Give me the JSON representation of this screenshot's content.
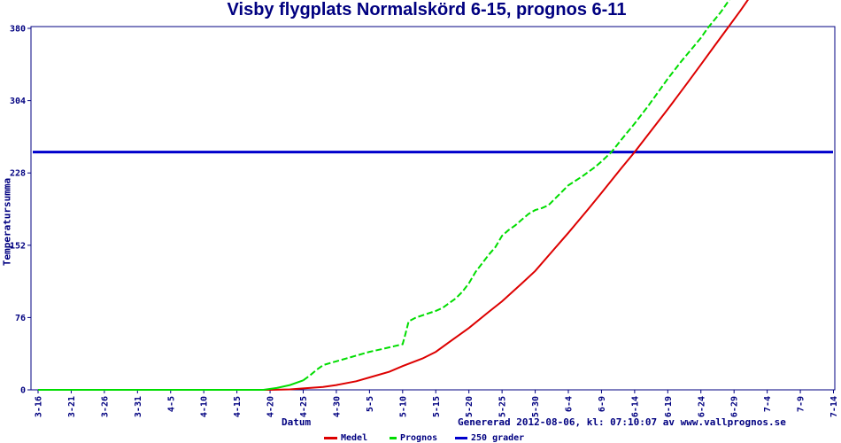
{
  "footer": "Genererad 2012-08-06, kl: 07:10:07 av www.vallprognos.se",
  "colors": {
    "axis": "#000080",
    "text": "#000080",
    "title": "#000080",
    "medel": "#dd0000",
    "prognos": "#00dd00",
    "reference": "#0000cc",
    "background": "#ffffff"
  },
  "legend": [
    {
      "label": "Medel",
      "color": "#dd0000"
    },
    {
      "label": "Prognos",
      "color": "#00dd00"
    },
    {
      "label": "250 grader",
      "color": "#0000cc"
    }
  ],
  "chart_data": {
    "type": "line",
    "title": "Visby flygplats Normalskörd 6-15, prognos 6-11",
    "xlabel": "Datum",
    "ylabel": "Temperatursumma",
    "ylim": [
      0,
      380
    ],
    "yticks": [
      0,
      76,
      152,
      228,
      304,
      380
    ],
    "x_unit": "days since 3-16",
    "xtick_day_step": 5,
    "xtick_labels": [
      "3-16",
      "3-21",
      "3-26",
      "3-31",
      "4-5",
      "4-10",
      "4-15",
      "4-20",
      "4-25",
      "4-30",
      "5-5",
      "5-10",
      "5-15",
      "5-20",
      "5-25",
      "5-30",
      "6-4",
      "6-9",
      "6-14",
      "6-19",
      "6-24",
      "6-29",
      "7-4",
      "7-9",
      "7-14"
    ],
    "grid": false,
    "legend_position": "bottom",
    "reference_line": {
      "label": "250 grader",
      "value": 250
    },
    "series": [
      {
        "name": "Medel",
        "color": "#dd0000",
        "style": "solid",
        "points": [
          [
            0,
            0
          ],
          [
            15,
            0
          ],
          [
            30,
            0
          ],
          [
            35,
            0
          ],
          [
            38,
            0.5
          ],
          [
            40,
            1.5
          ],
          [
            43,
            3
          ],
          [
            45,
            5
          ],
          [
            48,
            9
          ],
          [
            50,
            13
          ],
          [
            53,
            19
          ],
          [
            55,
            25
          ],
          [
            58,
            33
          ],
          [
            60,
            40
          ],
          [
            63,
            55
          ],
          [
            65,
            65
          ],
          [
            68,
            82
          ],
          [
            70,
            93
          ],
          [
            73,
            112
          ],
          [
            75,
            125
          ],
          [
            78,
            149
          ],
          [
            80,
            165
          ],
          [
            83,
            190
          ],
          [
            85,
            207
          ],
          [
            88,
            233
          ],
          [
            90,
            250
          ],
          [
            93,
            277
          ],
          [
            95,
            295
          ],
          [
            98,
            323
          ],
          [
            100,
            342
          ],
          [
            102,
            361
          ],
          [
            104,
            380
          ],
          [
            106,
            399
          ],
          [
            107.3,
            412
          ]
        ]
      },
      {
        "name": "Prognos",
        "color": "#00dd00",
        "style": "dashed",
        "points": [
          [
            0,
            0
          ],
          [
            15,
            0
          ],
          [
            30,
            0
          ],
          [
            34,
            0
          ],
          [
            36,
            2
          ],
          [
            38,
            5
          ],
          [
            40,
            10
          ],
          [
            41,
            15
          ],
          [
            42,
            21
          ],
          [
            43,
            26
          ],
          [
            44,
            28
          ],
          [
            45,
            30
          ],
          [
            47,
            34
          ],
          [
            50,
            40
          ],
          [
            52,
            43
          ],
          [
            55,
            48
          ],
          [
            55.4,
            58
          ],
          [
            55.9,
            72
          ],
          [
            57,
            76
          ],
          [
            60,
            83
          ],
          [
            61,
            86
          ],
          [
            62,
            91
          ],
          [
            63,
            96
          ],
          [
            64,
            103
          ],
          [
            65,
            112
          ],
          [
            66,
            124
          ],
          [
            67,
            133
          ],
          [
            68,
            142
          ],
          [
            69,
            150
          ],
          [
            70,
            162
          ],
          [
            71,
            168
          ],
          [
            72,
            173
          ],
          [
            73,
            179
          ],
          [
            74,
            185
          ],
          [
            75,
            189
          ],
          [
            76,
            191
          ],
          [
            77,
            194
          ],
          [
            78,
            201
          ],
          [
            80,
            215
          ],
          [
            82,
            224
          ],
          [
            84,
            234
          ],
          [
            85,
            240
          ],
          [
            86.5,
            250
          ],
          [
            88,
            263
          ],
          [
            90,
            280
          ],
          [
            92,
            298
          ],
          [
            95,
            327
          ],
          [
            97,
            345
          ],
          [
            100,
            370
          ],
          [
            101,
            380
          ],
          [
            103,
            397
          ],
          [
            104.3,
            410
          ]
        ]
      }
    ],
    "annotations": {
      "prognos_reaches_250": "6-11",
      "normal_reaches_250": "6-15"
    }
  }
}
